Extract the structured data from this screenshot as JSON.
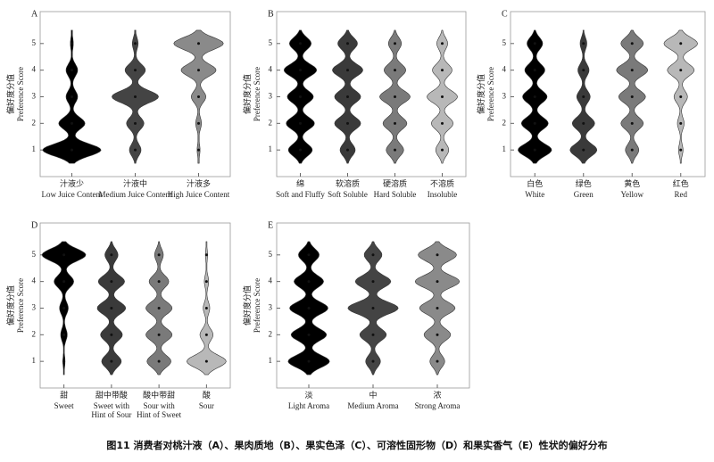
{
  "chart_data": [
    {
      "type": "violin",
      "panel": "A",
      "ylabel_zh": "偏好度分值",
      "ylabel": "Preference Score",
      "categories": [
        "汁液少",
        "汁液中",
        "汁液多"
      ],
      "categories_en": [
        "Low Juice Content",
        "Medium Juice Content",
        "High Juice Content"
      ],
      "colors": [
        "#000000",
        "#444444",
        "#8a8a8a"
      ],
      "scores": [
        1,
        2,
        3,
        4,
        5
      ],
      "densities": [
        [
          1.0,
          0.45,
          0.2,
          0.2,
          0.05
        ],
        [
          0.2,
          0.3,
          0.8,
          0.35,
          0.1
        ],
        [
          0.05,
          0.1,
          0.25,
          0.6,
          0.85
        ]
      ],
      "ylim": [
        0,
        6.2
      ],
      "yticks": [
        1,
        2,
        3,
        4,
        5
      ]
    },
    {
      "type": "violin",
      "panel": "B",
      "ylabel_zh": "偏好度分值",
      "ylabel": "Preference Score",
      "categories": [
        "绵",
        "软溶质",
        "硬溶质",
        "不溶质"
      ],
      "categories_en": [
        "Soft and Fluffy",
        "Soft Soluble",
        "Hard Soluble",
        "Insoluble"
      ],
      "colors": [
        "#000000",
        "#3a3a3a",
        "#7a7a7a",
        "#b8b8b8"
      ],
      "scores": [
        1,
        2,
        3,
        4,
        5
      ],
      "densities": [
        [
          0.55,
          0.65,
          0.6,
          0.75,
          0.5
        ],
        [
          0.35,
          0.6,
          0.6,
          0.7,
          0.45
        ],
        [
          0.4,
          0.55,
          0.7,
          0.5,
          0.3
        ],
        [
          0.3,
          0.5,
          0.7,
          0.45,
          0.25
        ]
      ],
      "ylim": [
        0,
        6.2
      ],
      "yticks": [
        1,
        2,
        3,
        4,
        5
      ]
    },
    {
      "type": "violin",
      "panel": "C",
      "ylabel_zh": "偏好度分值",
      "ylabel": "Preference Score",
      "categories": [
        "白色",
        "绿色",
        "黄色",
        "红色"
      ],
      "categories_en": [
        "White",
        "Green",
        "Yellow",
        "Red"
      ],
      "colors": [
        "#000000",
        "#3a3a3a",
        "#7a7a7a",
        "#b8b8b8"
      ],
      "scores": [
        1,
        2,
        3,
        4,
        5
      ],
      "densities": [
        [
          0.75,
          0.6,
          0.55,
          0.45,
          0.35
        ],
        [
          0.6,
          0.5,
          0.3,
          0.25,
          0.15
        ],
        [
          0.3,
          0.5,
          0.6,
          0.7,
          0.5
        ],
        [
          0.1,
          0.15,
          0.3,
          0.6,
          0.75
        ]
      ],
      "ylim": [
        0,
        6.2
      ],
      "yticks": [
        1,
        2,
        3,
        4,
        5
      ]
    },
    {
      "type": "violin",
      "panel": "D",
      "ylabel_zh": "偏好度分值",
      "ylabel": "Preference Score",
      "categories": [
        "甜",
        "甜中带酸",
        "酸中带甜",
        "酸"
      ],
      "categories_en": [
        "Sweet",
        "Sweet with Hint of Sour",
        "Sour with Hint of Sweet",
        "Sour"
      ],
      "colors": [
        "#000000",
        "#3a3a3a",
        "#7a7a7a",
        "#b8b8b8"
      ],
      "scores": [
        1,
        2,
        3,
        4,
        5
      ],
      "densities": [
        [
          0.05,
          0.15,
          0.2,
          0.45,
          1.0
        ],
        [
          0.45,
          0.5,
          0.65,
          0.6,
          0.3
        ],
        [
          0.55,
          0.6,
          0.6,
          0.45,
          0.2
        ],
        [
          0.9,
          0.3,
          0.15,
          0.1,
          0.05
        ]
      ],
      "ylim": [
        0,
        6.2
      ],
      "yticks": [
        1,
        2,
        3,
        4,
        5
      ]
    },
    {
      "type": "violin",
      "panel": "E",
      "ylabel_zh": "偏好度分值",
      "ylabel": "Preference Score",
      "categories": [
        "淡",
        "中",
        "浓"
      ],
      "categories_en": [
        "Light Aroma",
        "Medium Aroma",
        "Strong Aroma"
      ],
      "colors": [
        "#000000",
        "#444444",
        "#8a8a8a"
      ],
      "scores": [
        1,
        2,
        3,
        4,
        5
      ],
      "densities": [
        [
          0.7,
          0.6,
          0.65,
          0.5,
          0.35
        ],
        [
          0.25,
          0.45,
          0.85,
          0.6,
          0.3
        ],
        [
          0.25,
          0.45,
          0.6,
          0.75,
          0.65
        ]
      ],
      "ylim": [
        0,
        6.2
      ],
      "yticks": [
        1,
        2,
        3,
        4,
        5
      ]
    }
  ],
  "figure_caption": "图11 消费者对桃汁液（A）、果肉质地（B）、果实色泽（C）、可溶性固形物（D）和果实香气（E）性状的偏好分布"
}
